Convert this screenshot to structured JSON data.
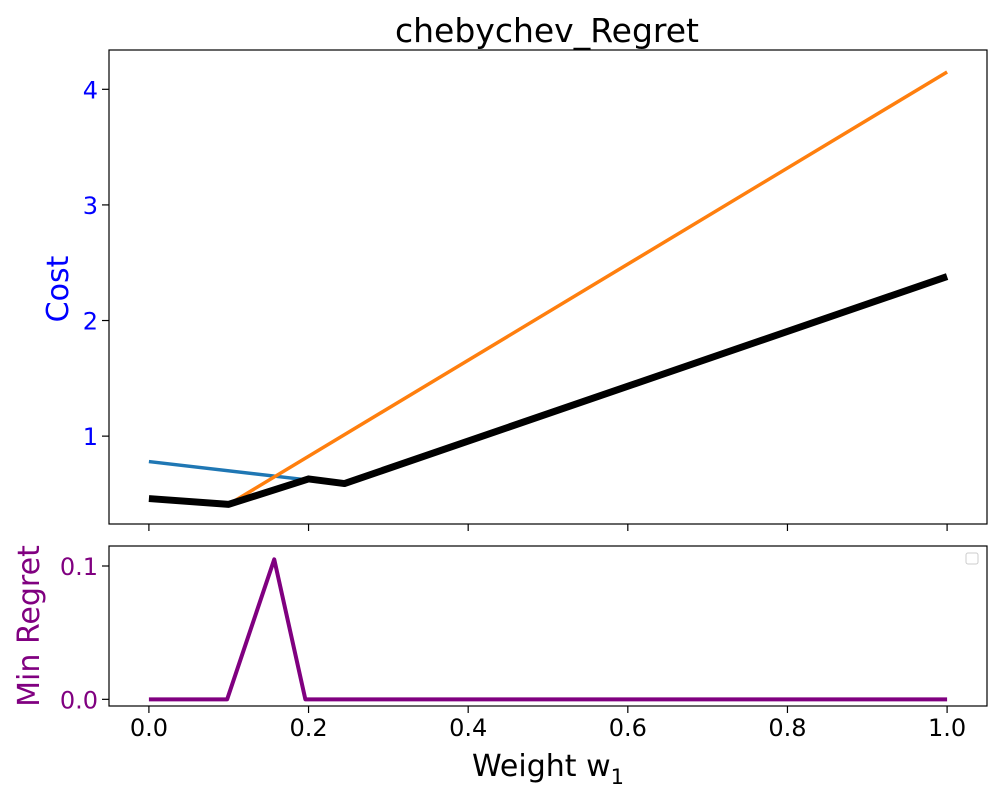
{
  "chart_data": [
    {
      "type": "line",
      "title": "chebychev_Regret",
      "ylabel": "Cost",
      "ylabel_color": "#0000ff",
      "tick_color": "#0000ff",
      "xlim": [
        -0.05,
        1.05
      ],
      "ylim": [
        0.24,
        4.34
      ],
      "yticks": [
        1,
        2,
        3,
        4
      ],
      "series": [
        {
          "color": "#1f77b4",
          "width": 3.5,
          "x": [
            0.0,
            0.2
          ],
          "y": [
            0.78,
            0.62
          ]
        },
        {
          "color": "#ff7f0e",
          "width": 3.5,
          "x": [
            0.1,
            1.0
          ],
          "y": [
            0.41,
            4.15
          ]
        },
        {
          "color": "#000000",
          "width": 7,
          "x": [
            0.0,
            0.1,
            0.2,
            0.245,
            1.0
          ],
          "y": [
            0.46,
            0.41,
            0.63,
            0.59,
            2.38
          ]
        }
      ]
    },
    {
      "type": "line",
      "ylabel": "Min Regret",
      "ylabel_color": "#800080",
      "tick_color": "#800080",
      "xlabel": "Weight w",
      "xlabel_sub": "1",
      "xlim": [
        -0.05,
        1.05
      ],
      "ylim": [
        -0.005,
        0.115
      ],
      "yticks": [
        0.0,
        0.1
      ],
      "ytick_labels": [
        "0.0",
        "0.1"
      ],
      "xticks": [
        0.0,
        0.2,
        0.4,
        0.6,
        0.8,
        1.0
      ],
      "xtick_labels": [
        "0.0",
        "0.2",
        "0.4",
        "0.6",
        "0.8",
        "1.0"
      ],
      "legend": "top-right",
      "series": [
        {
          "color": "#800080",
          "width": 4,
          "x": [
            0.0,
            0.098,
            0.157,
            0.196,
            1.0
          ],
          "y": [
            0.0,
            0.0,
            0.105,
            0.0,
            0.0
          ]
        }
      ]
    }
  ]
}
